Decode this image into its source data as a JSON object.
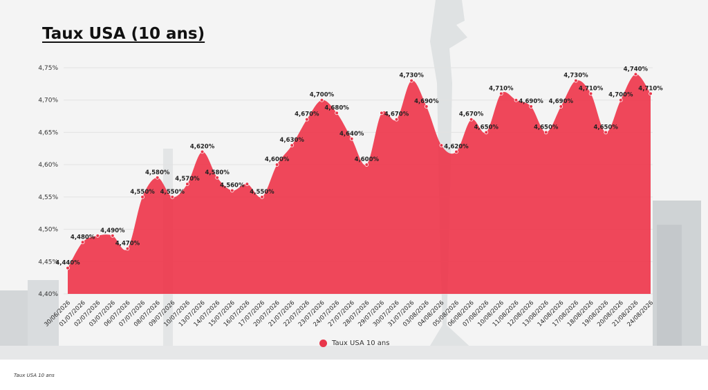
{
  "title": "Taux USA (10 ans)",
  "footnote": "Taux USA 10 ans",
  "colors": {
    "series": "#ee2f44",
    "dot": "#e8364a",
    "grid": "#e2e2e2",
    "sky": "#f3f3f3",
    "city": "#cfd2d4"
  },
  "chart_data": {
    "type": "area",
    "title": "Taux USA (10 ans)",
    "xlabel": "",
    "ylabel": "",
    "ylim": [
      4.4,
      4.75
    ],
    "yticks": [
      "4,40%",
      "4,45%",
      "4,50%",
      "4,55%",
      "4,60%",
      "4,65%",
      "4,70%",
      "4,75%"
    ],
    "grid": true,
    "legend": "bottom-center",
    "categories": [
      "30/06/2026",
      "01/07/2026",
      "02/07/2026",
      "03/07/2026",
      "06/07/2026",
      "07/07/2026",
      "08/07/2026",
      "09/07/2026",
      "10/07/2026",
      "13/07/2026",
      "14/07/2026",
      "15/07/2026",
      "16/07/2026",
      "17/07/2026",
      "20/07/2026",
      "21/07/2026",
      "22/07/2026",
      "23/07/2026",
      "24/07/2026",
      "27/07/2026",
      "28/07/2026",
      "29/07/2026",
      "30/07/2026",
      "31/07/2026",
      "03/08/2026",
      "04/08/2026",
      "05/08/2026",
      "06/08/2026",
      "07/08/2026",
      "10/08/2026",
      "11/08/2026",
      "12/08/2026",
      "13/08/2026",
      "14/08/2026",
      "17/08/2026",
      "18/08/2026",
      "19/08/2026",
      "20/08/2026",
      "21/08/2026",
      "24/08/2026"
    ],
    "series": [
      {
        "name": "Taux USA 10 ans",
        "values": [
          4.44,
          4.48,
          4.49,
          4.49,
          4.47,
          4.55,
          4.58,
          4.55,
          4.57,
          4.62,
          4.58,
          4.56,
          4.57,
          4.55,
          4.6,
          4.63,
          4.67,
          4.7,
          4.68,
          4.64,
          4.6,
          4.68,
          4.67,
          4.73,
          4.69,
          4.63,
          4.62,
          4.67,
          4.65,
          4.71,
          4.7,
          4.69,
          4.65,
          4.69,
          4.73,
          4.71,
          4.65,
          4.7,
          4.74,
          4.71
        ],
        "labels": [
          "4,440%",
          "4,480%",
          "",
          "4,490%",
          "4,470%",
          "4,550%",
          "4,580%",
          "4,550%",
          "4,570%",
          "4,620%",
          "4,580%",
          "4,560%",
          "",
          "4,550%",
          "4,600%",
          "4,630%",
          "4,670%",
          "4,700%",
          "4,680%",
          "4,640%",
          "4,600%",
          "",
          "4,670%",
          "4,730%",
          "4,690%",
          "",
          "4,620%",
          "4,670%",
          "4,650%",
          "4,710%",
          "",
          "4,690%",
          "4,650%",
          "4,690%",
          "4,730%",
          "4,710%",
          "4,650%",
          "4,700%",
          "4,740%",
          "4,710%"
        ]
      }
    ]
  }
}
